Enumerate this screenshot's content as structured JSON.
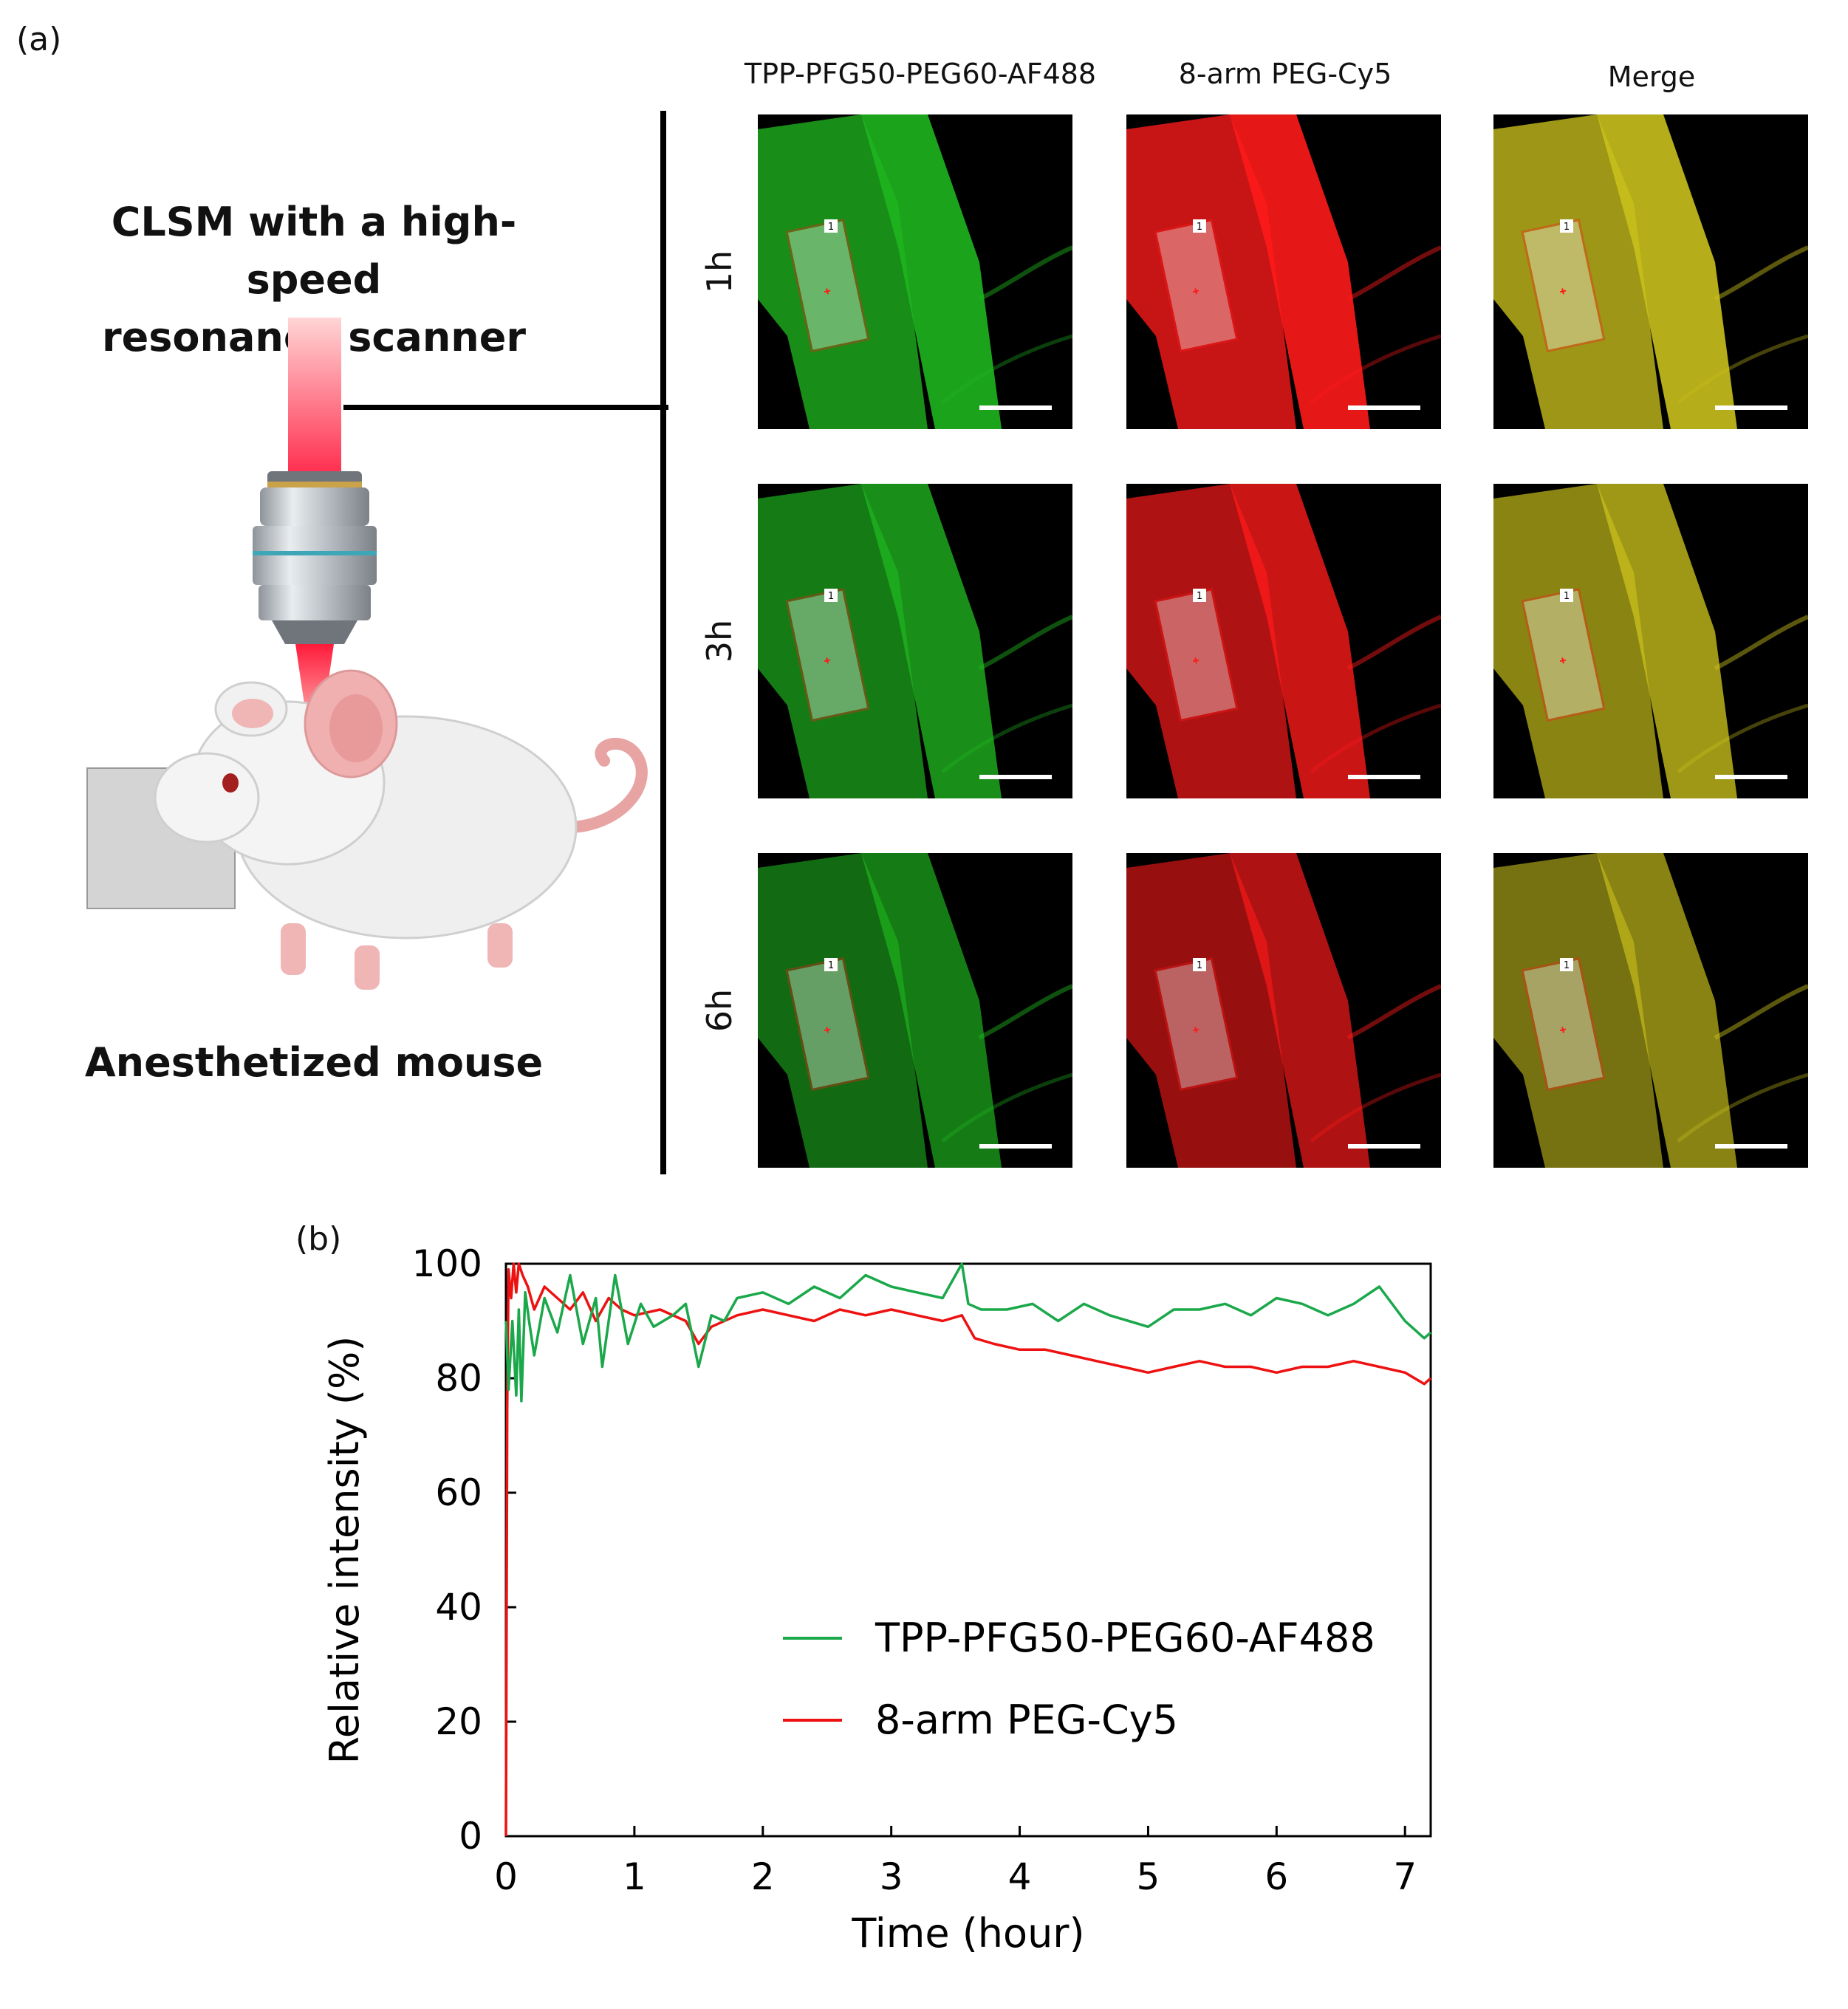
{
  "figure": {
    "panel_a_label": "(a)",
    "panel_b_label": "(b)",
    "setup": {
      "title_line1": "CLSM with a high-speed",
      "title_line2": "resonance scanner",
      "mouse_caption": "Anesthetized mouse"
    },
    "columns": [
      "TPP-PFG50-PEG60-AF488",
      "8-arm PEG-Cy5",
      "Merge"
    ],
    "rows": [
      "1h",
      "3h",
      "6h"
    ],
    "roi_label": "1",
    "colors": {
      "green_channel": "#1fb51f",
      "red_channel": "#ff1a1a",
      "merge_channel": "#c9c01c",
      "green_line": "#1aa84a",
      "red_line": "#ee1111"
    }
  },
  "chart_data": {
    "type": "line",
    "xlabel": "Time (hour)",
    "ylabel": "Relative intensity (%)",
    "xlim": [
      0,
      7.2
    ],
    "ylim": [
      0,
      100
    ],
    "xticks": [
      0,
      1,
      2,
      3,
      4,
      5,
      6,
      7
    ],
    "yticks": [
      0,
      20,
      40,
      60,
      80,
      100
    ],
    "legend_position": "lower-right",
    "series": [
      {
        "name": "TPP-PFG50-PEG60-AF488",
        "color": "#1aa84a",
        "x": [
          0.0,
          0.02,
          0.05,
          0.08,
          0.1,
          0.12,
          0.15,
          0.18,
          0.22,
          0.3,
          0.4,
          0.5,
          0.6,
          0.7,
          0.75,
          0.85,
          0.95,
          1.05,
          1.15,
          1.3,
          1.4,
          1.5,
          1.6,
          1.7,
          1.8,
          2.0,
          2.2,
          2.4,
          2.6,
          2.8,
          3.0,
          3.2,
          3.4,
          3.55,
          3.6,
          3.7,
          3.9,
          4.1,
          4.3,
          4.5,
          4.7,
          5.0,
          5.2,
          5.4,
          5.6,
          5.8,
          6.0,
          6.2,
          6.4,
          6.6,
          6.8,
          7.0,
          7.15,
          7.2
        ],
        "y": [
          90,
          78,
          90,
          77,
          92,
          76,
          95,
          90,
          84,
          94,
          88,
          98,
          86,
          94,
          82,
          98,
          86,
          93,
          89,
          91,
          93,
          82,
          91,
          90,
          94,
          95,
          93,
          96,
          94,
          98,
          96,
          95,
          94,
          100,
          93,
          92,
          92,
          93,
          90,
          93,
          91,
          89,
          92,
          92,
          93,
          91,
          94,
          93,
          91,
          93,
          96,
          90,
          87,
          88
        ]
      },
      {
        "name": "8-arm PEG-Cy5",
        "color": "#ee1111",
        "x": [
          0.0,
          0.01,
          0.02,
          0.04,
          0.06,
          0.08,
          0.1,
          0.13,
          0.17,
          0.22,
          0.3,
          0.4,
          0.5,
          0.6,
          0.7,
          0.8,
          0.9,
          1.0,
          1.2,
          1.4,
          1.5,
          1.6,
          1.8,
          2.0,
          2.2,
          2.4,
          2.6,
          2.8,
          3.0,
          3.2,
          3.4,
          3.55,
          3.65,
          3.8,
          4.0,
          4.2,
          4.4,
          4.6,
          4.8,
          5.0,
          5.2,
          5.4,
          5.6,
          5.8,
          6.0,
          6.2,
          6.4,
          6.6,
          6.8,
          7.0,
          7.15,
          7.2
        ],
        "y": [
          0,
          75,
          99,
          94,
          100,
          95,
          100,
          98,
          96,
          92,
          96,
          94,
          92,
          95,
          90,
          94,
          92,
          91,
          92,
          90,
          86,
          89,
          91,
          92,
          91,
          90,
          92,
          91,
          92,
          91,
          90,
          91,
          87,
          86,
          85,
          85,
          84,
          83,
          82,
          81,
          82,
          83,
          82,
          82,
          81,
          82,
          82,
          83,
          82,
          81,
          79,
          80
        ]
      }
    ]
  }
}
